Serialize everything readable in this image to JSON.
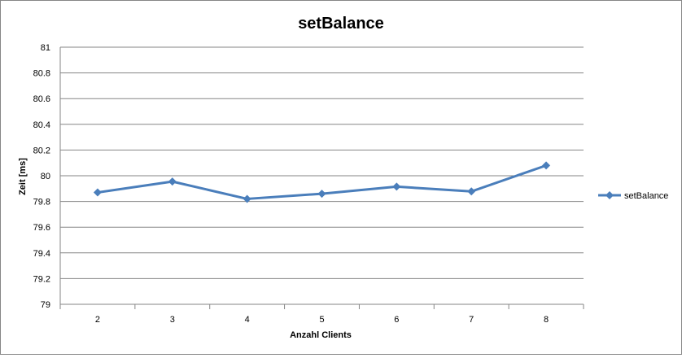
{
  "chart_data": {
    "type": "line",
    "title": "setBalance",
    "xlabel": "Anzahl Clients",
    "ylabel": "Zeit [ms]",
    "categories": [
      "2",
      "3",
      "4",
      "5",
      "6",
      "7",
      "8"
    ],
    "series": [
      {
        "name": "setBalance",
        "values": [
          79.87,
          79.955,
          79.82,
          79.86,
          79.915,
          79.878,
          80.08
        ],
        "color": "#4a7ebb"
      }
    ],
    "ylim": [
      79,
      81
    ],
    "yticks": [
      "79",
      "79.2",
      "79.4",
      "79.6",
      "79.8",
      "80",
      "80.2",
      "80.4",
      "80.6",
      "80.8",
      "81"
    ],
    "grid": true,
    "legend": "right",
    "marker": "diamond"
  }
}
